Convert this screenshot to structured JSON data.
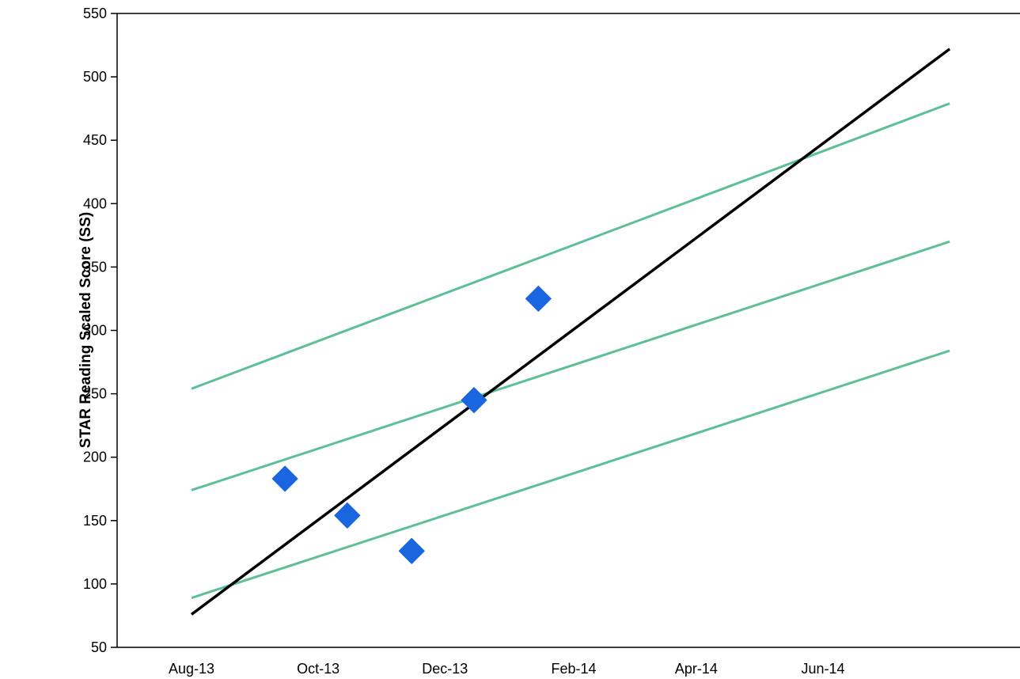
{
  "chart_data": {
    "type": "scatter",
    "title": "",
    "xlabel": "",
    "ylabel": "STAR Reading Scaled Score (SS)",
    "ylim": [
      50,
      550
    ],
    "yticks": [
      50,
      100,
      150,
      200,
      250,
      300,
      350,
      400,
      450,
      500,
      550
    ],
    "xlim": [
      "2013-07-15",
      "2014-11-30"
    ],
    "xticks": [
      {
        "date": "2013-08-01",
        "label": "Aug-13"
      },
      {
        "date": "2013-10-01",
        "label": "Oct-13"
      },
      {
        "date": "2013-12-01",
        "label": "Dec-13"
      },
      {
        "date": "2014-02-01",
        "label": "Feb-14"
      },
      {
        "date": "2014-04-01",
        "label": "Apr-14"
      },
      {
        "date": "2014-06-01",
        "label": "Jun-14"
      }
    ],
    "grid": false,
    "legend": "none",
    "colors": {
      "scores": "#1a66e0",
      "trend": "#000000",
      "benchmark": "#5cbf96"
    },
    "series": [
      {
        "kind": "points",
        "marker": "diamond",
        "color": "#1a66e0",
        "points": [
          {
            "x": "2013-09-15",
            "y": 183
          },
          {
            "x": "2013-10-15",
            "y": 154
          },
          {
            "x": "2013-11-15",
            "y": 126
          },
          {
            "x": "2013-12-15",
            "y": 245
          },
          {
            "x": "2014-01-15",
            "y": 325
          }
        ]
      },
      {
        "kind": "line",
        "color": "#000000",
        "points": [
          {
            "x": "2013-08-01",
            "y": 76
          },
          {
            "x": "2014-08-01",
            "y": 522
          }
        ]
      },
      {
        "kind": "line",
        "color": "#5cbf96",
        "points": [
          {
            "x": "2013-08-01",
            "y": 254
          },
          {
            "x": "2014-08-01",
            "y": 479
          }
        ]
      },
      {
        "kind": "line",
        "color": "#5cbf96",
        "points": [
          {
            "x": "2013-08-01",
            "y": 174
          },
          {
            "x": "2014-08-01",
            "y": 370
          }
        ]
      },
      {
        "kind": "line",
        "color": "#5cbf96",
        "points": [
          {
            "x": "2013-08-01",
            "y": 89
          },
          {
            "x": "2014-08-01",
            "y": 284
          }
        ]
      }
    ]
  }
}
